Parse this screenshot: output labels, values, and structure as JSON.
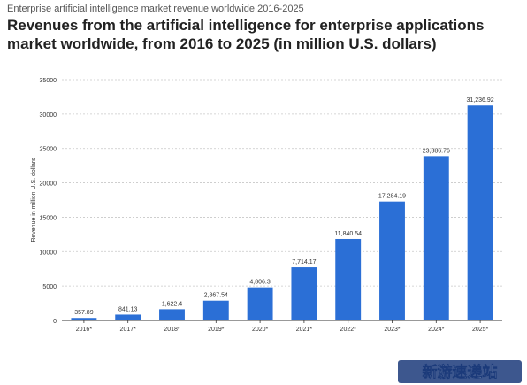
{
  "supertitle": "Enterprise artificial intelligence market revenue worldwide 2016-2025",
  "title": "Revenues from the artificial intelligence for enterprise applications market worldwide, from 2016 to 2025 (in million U.S. dollars)",
  "watermark_text": "新游速递站",
  "colors": {
    "bar": "#2b6fd6",
    "grid": "#c8c8c8",
    "axis": "#333333",
    "text": "#333333",
    "watermark_bg": "#1b3a7a"
  },
  "chart_data": {
    "type": "bar",
    "categories": [
      "2016*",
      "2017*",
      "2018*",
      "2019*",
      "2020*",
      "2021*",
      "2022*",
      "2023*",
      "2024*",
      "2025*"
    ],
    "values": [
      357.89,
      841.13,
      1622.4,
      2867.54,
      4806.3,
      7714.17,
      11840.54,
      17284.19,
      23886.76,
      31236.92
    ],
    "value_labels": [
      "357.89",
      "841.13",
      "1,622.4",
      "2,867.54",
      "4,806.3",
      "7,714.17",
      "11,840.54",
      "17,284.19",
      "23,886.76",
      "31,236.92"
    ],
    "ylabel": "Revenue in million U.S. dollars",
    "xlabel": "",
    "ylim": [
      0,
      35000
    ],
    "yticks": [
      0,
      5000,
      10000,
      15000,
      20000,
      25000,
      30000,
      35000
    ],
    "grid": true,
    "grid_style": "dashed"
  }
}
